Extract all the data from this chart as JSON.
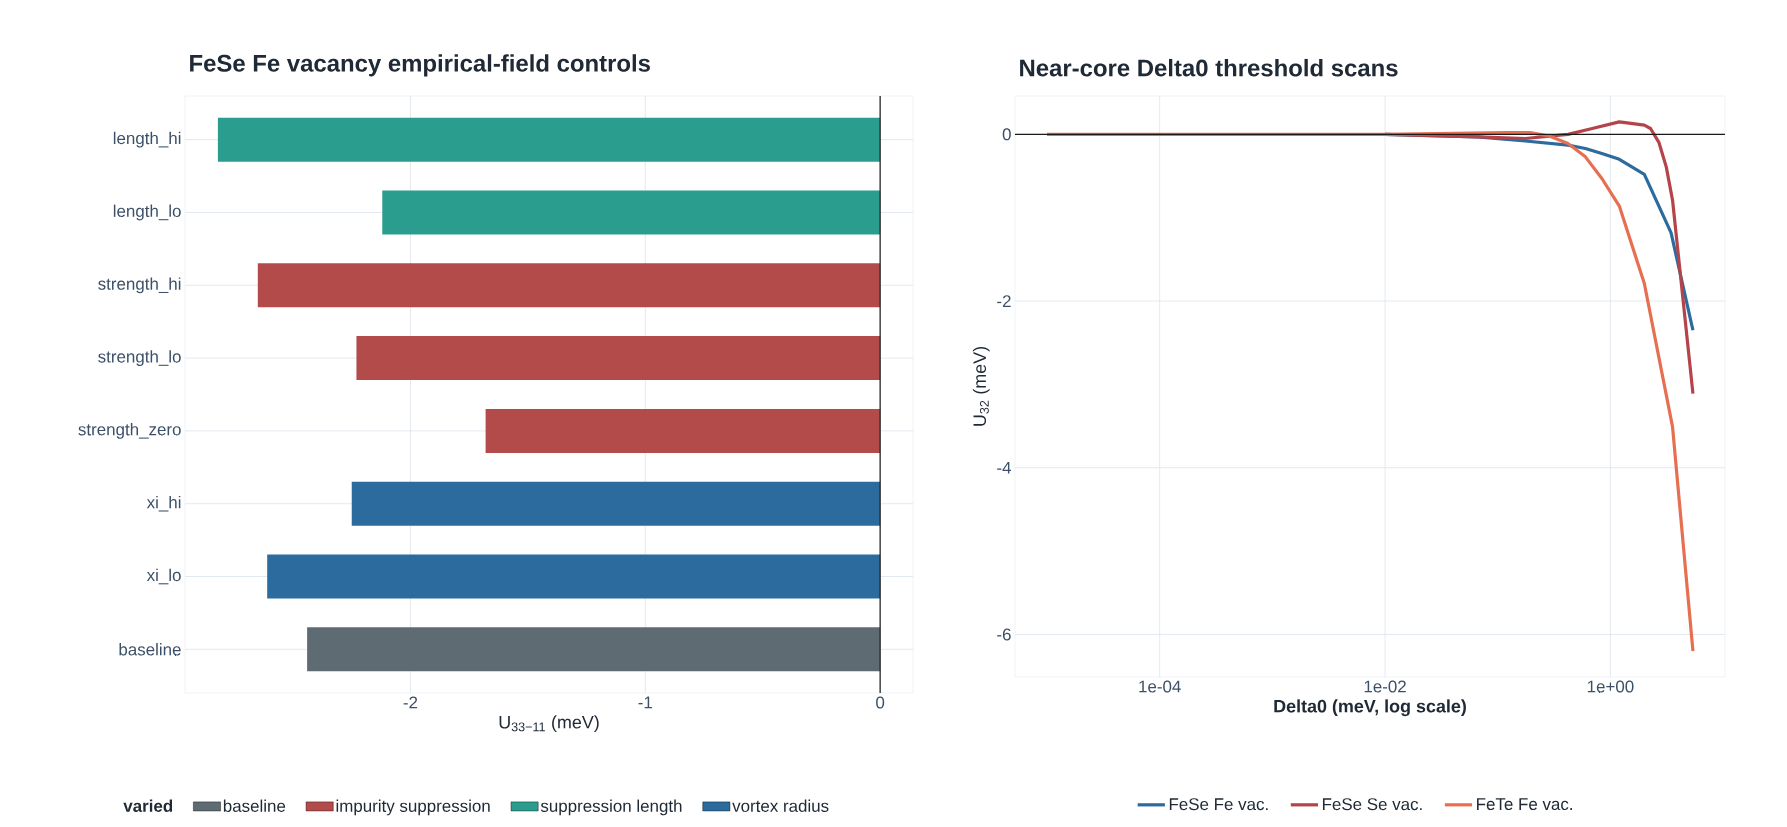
{
  "chart_data": [
    {
      "type": "bar",
      "orientation": "horizontal",
      "title": "FeSe Fe vacancy empirical-field controls",
      "xlabel": "U$_{33−11}$ (meV)",
      "legend_title": "varied",
      "categories": [
        "length_hi",
        "length_lo",
        "strength_hi",
        "strength_lo",
        "strength_zero",
        "xi_hi",
        "xi_lo",
        "baseline"
      ],
      "series": [
        {
          "name": "baseline",
          "color": "#5f6b72",
          "values": [
            null,
            null,
            null,
            null,
            null,
            null,
            null,
            -2.44
          ]
        },
        {
          "name": "impurity suppression",
          "color": "#b44b4b",
          "values": [
            null,
            null,
            -2.65,
            -2.23,
            -1.68,
            null,
            null,
            null
          ]
        },
        {
          "name": "suppression length",
          "color": "#2a9d8f",
          "values": [
            -2.82,
            -2.12,
            null,
            null,
            null,
            null,
            null,
            null
          ]
        },
        {
          "name": "vortex radius",
          "color": "#2c6b9e",
          "values": [
            null,
            null,
            null,
            null,
            null,
            -2.25,
            -2.61,
            null
          ]
        }
      ],
      "xlim": [
        -2.96,
        0.14
      ],
      "xticks": [
        -2,
        -1,
        0
      ],
      "grid": true,
      "legend": "bottom",
      "ref_lines": [
        {
          "axis": "x",
          "value": 0,
          "color": "#1a1a1a"
        }
      ]
    },
    {
      "type": "line",
      "title": "Near-core Delta0 threshold scans",
      "xlabel": "Delta0 (meV, log scale)",
      "ylabel": "U$_{32}$ (meV)",
      "log": "x",
      "series": [
        {
          "name": "FeSe Fe vac.",
          "color": "#2c6b9e",
          "x": [
            0.01,
            0.066,
            0.176,
            0.42,
            0.6,
            0.84,
            1.2,
            2.0,
            3.45,
            5.4
          ],
          "values": [
            0,
            -0.03,
            -0.08,
            -0.13,
            -0.17,
            -0.23,
            -0.3,
            -0.48,
            -1.18,
            -2.35
          ]
        },
        {
          "name": "FeSe Se vac.",
          "color": "#b5434a",
          "x": [
            0.01,
            0.066,
            0.176,
            0.42,
            0.69,
            1.2,
            2.0,
            2.27,
            2.7,
            3.13,
            3.56,
            5.4
          ],
          "values": [
            0,
            -0.03,
            -0.05,
            0,
            0.07,
            0.15,
            0.11,
            0.07,
            -0.1,
            -0.39,
            -0.79,
            -3.11
          ]
        },
        {
          "name": "FeTe Fe vac.",
          "color": "#e76f51",
          "x": [
            1e-05,
            0.0001,
            0.001,
            0.01,
            0.119,
            0.194,
            0.287,
            0.42,
            0.6,
            0.84,
            1.2,
            2.0,
            3.56,
            5.4
          ],
          "values": [
            0,
            0,
            0,
            0,
            0.02,
            0.02,
            -0.02,
            -0.11,
            -0.27,
            -0.53,
            -0.86,
            -1.79,
            -3.51,
            -6.2
          ]
        }
      ],
      "xlim": [
        5.2e-06,
        10.4
      ],
      "ylim": [
        -6.51,
        0.46
      ],
      "xticks": [
        {
          "value": 0.0001,
          "label": "1e-04"
        },
        {
          "value": 0.01,
          "label": "1e-02"
        },
        {
          "value": 1,
          "label": "1e+00"
        }
      ],
      "yticks": [
        -6,
        -4,
        -2,
        0
      ],
      "grid": true,
      "legend": "bottom",
      "line_style": "solid",
      "marker": "none",
      "ref_lines": [
        {
          "axis": "y",
          "value": 0,
          "color": "#1a1a1a"
        }
      ]
    }
  ]
}
